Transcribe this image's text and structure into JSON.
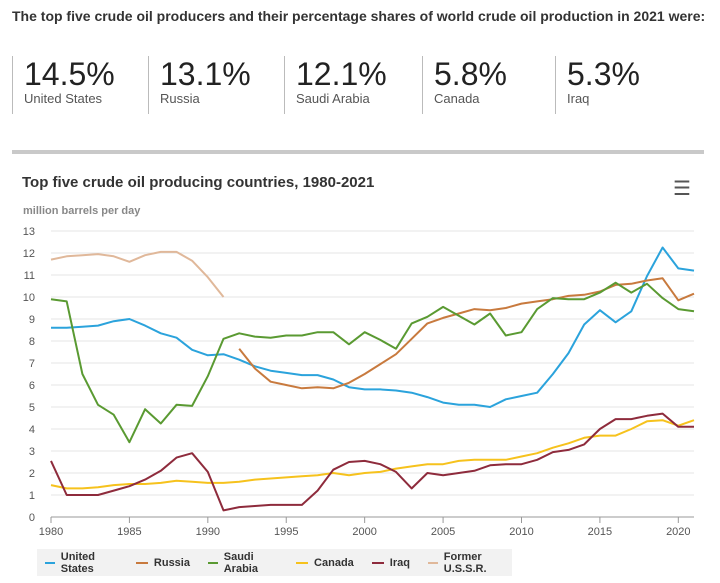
{
  "intro": "The top five crude oil producers and their percentage shares of world crude oil production in 2021 were:",
  "stats": [
    {
      "value": "14.5%",
      "label": "United States"
    },
    {
      "value": "13.1%",
      "label": "Russia"
    },
    {
      "value": "12.1%",
      "label": "Saudi Arabia"
    },
    {
      "value": "5.8%",
      "label": "Canada"
    },
    {
      "value": "5.3%",
      "label": "Iraq"
    }
  ],
  "menu_icon": "hamburger-menu-icon",
  "chart_data": {
    "type": "line",
    "title": "Top five crude oil producing countries, 1980-2021",
    "ylabel": "million barrels per day",
    "xlabel": "",
    "xlim": [
      1980,
      2021
    ],
    "ylim": [
      0,
      13
    ],
    "xticks": [
      1980,
      1985,
      1990,
      1995,
      2000,
      2005,
      2010,
      2015,
      2020
    ],
    "yticks": [
      0,
      1,
      2,
      3,
      4,
      5,
      6,
      7,
      8,
      9,
      10,
      11,
      12,
      13
    ],
    "grid": true,
    "legend": "bottom",
    "series": [
      {
        "name": "United States",
        "color": "#2ba3dc",
        "start": 1980,
        "values": [
          8.6,
          8.6,
          8.65,
          8.7,
          8.9,
          9.0,
          8.7,
          8.35,
          8.15,
          7.6,
          7.35,
          7.4,
          7.15,
          6.85,
          6.65,
          6.55,
          6.45,
          6.45,
          6.25,
          5.9,
          5.8,
          5.8,
          5.75,
          5.65,
          5.45,
          5.2,
          5.1,
          5.1,
          5.0,
          5.35,
          5.5,
          5.65,
          6.5,
          7.45,
          8.75,
          9.4,
          8.85,
          9.35,
          10.95,
          12.25,
          11.3,
          11.2
        ]
      },
      {
        "name": "Russia",
        "color": "#c87a3e",
        "start": 1992,
        "values": [
          7.65,
          6.75,
          6.15,
          6.0,
          5.85,
          5.9,
          5.85,
          6.1,
          6.5,
          6.95,
          7.4,
          8.1,
          8.8,
          9.05,
          9.25,
          9.45,
          9.4,
          9.5,
          9.7,
          9.8,
          9.9,
          10.05,
          10.1,
          10.25,
          10.55,
          10.6,
          10.75,
          10.85,
          9.85,
          10.15
        ]
      },
      {
        "name": "Saudi Arabia",
        "color": "#5a9a32",
        "start": 1980,
        "values": [
          9.9,
          9.8,
          6.5,
          5.1,
          4.65,
          3.4,
          4.9,
          4.25,
          5.1,
          5.05,
          6.4,
          8.1,
          8.35,
          8.2,
          8.15,
          8.25,
          8.25,
          8.4,
          8.4,
          7.85,
          8.4,
          8.05,
          7.65,
          8.8,
          9.1,
          9.55,
          9.15,
          8.75,
          9.25,
          8.25,
          8.4,
          9.45,
          9.95,
          9.9,
          9.9,
          10.2,
          10.65,
          10.2,
          10.6,
          9.95,
          9.45,
          9.35
        ]
      },
      {
        "name": "Canada",
        "color": "#f6c21d",
        "start": 1980,
        "values": [
          1.45,
          1.3,
          1.3,
          1.35,
          1.45,
          1.5,
          1.5,
          1.55,
          1.65,
          1.6,
          1.55,
          1.55,
          1.6,
          1.7,
          1.75,
          1.8,
          1.85,
          1.9,
          2.0,
          1.9,
          2.0,
          2.05,
          2.2,
          2.3,
          2.4,
          2.4,
          2.55,
          2.6,
          2.6,
          2.6,
          2.75,
          2.9,
          3.15,
          3.35,
          3.6,
          3.7,
          3.7,
          4.0,
          4.35,
          4.4,
          4.15,
          4.4
        ]
      },
      {
        "name": "Iraq",
        "color": "#8e2b3c",
        "start": 1980,
        "values": [
          2.55,
          1.0,
          1.0,
          1.0,
          1.2,
          1.4,
          1.7,
          2.1,
          2.7,
          2.9,
          2.05,
          0.3,
          0.45,
          0.5,
          0.55,
          0.55,
          0.55,
          1.2,
          2.15,
          2.5,
          2.55,
          2.4,
          2.05,
          1.3,
          2.0,
          1.9,
          2.0,
          2.1,
          2.35,
          2.4,
          2.4,
          2.6,
          2.95,
          3.05,
          3.3,
          4.0,
          4.45,
          4.45,
          4.6,
          4.7,
          4.1,
          4.1
        ]
      },
      {
        "name": "Former U.S.S.R.",
        "color": "#e0b89a",
        "start": 1980,
        "values": [
          11.7,
          11.85,
          11.9,
          11.95,
          11.85,
          11.6,
          11.9,
          12.05,
          12.05,
          11.65,
          10.9,
          10.0
        ]
      }
    ]
  }
}
